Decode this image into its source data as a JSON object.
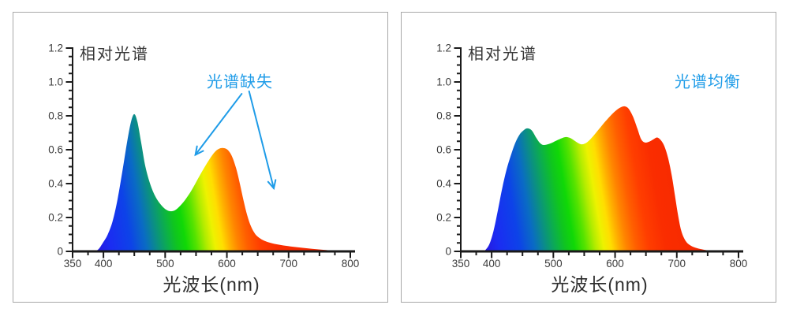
{
  "page": {
    "background": "#ffffff",
    "panel_border_color": "#a8a8a8",
    "axis_color": "#1a1a1a",
    "tick_label_color": "#3c3c3c",
    "title_color": "#383838",
    "annotation_color": "#1f9ce8"
  },
  "spectrum_gradient": [
    {
      "nm": 380,
      "color": "#2B11D6"
    },
    {
      "nm": 412,
      "color": "#1B2CF2"
    },
    {
      "nm": 445,
      "color": "#0D43E8"
    },
    {
      "nm": 468,
      "color": "#0A6BC4"
    },
    {
      "nm": 487,
      "color": "#0B9180"
    },
    {
      "nm": 502,
      "color": "#0CAD4E"
    },
    {
      "nm": 517,
      "color": "#0FC51F"
    },
    {
      "nm": 531,
      "color": "#10D807"
    },
    {
      "nm": 548,
      "color": "#55E300"
    },
    {
      "nm": 564,
      "color": "#B2EC00"
    },
    {
      "nm": 577,
      "color": "#EDF200"
    },
    {
      "nm": 589,
      "color": "#FFDE00"
    },
    {
      "nm": 601,
      "color": "#FFAE00"
    },
    {
      "nm": 613,
      "color": "#FF8400"
    },
    {
      "nm": 628,
      "color": "#FF5F00"
    },
    {
      "nm": 648,
      "color": "#FF3E00"
    },
    {
      "nm": 675,
      "color": "#FA2D00"
    },
    {
      "nm": 800,
      "color": "#F22300"
    }
  ],
  "chart_data": [
    {
      "type": "area",
      "title": "相对光谱",
      "xlabel": "光波长(nm)",
      "xlim": [
        350,
        800
      ],
      "ylim": [
        0,
        1.2
      ],
      "x_tick_labels": [
        [
          350,
          "350"
        ],
        [
          400,
          "400"
        ],
        [
          500,
          "500"
        ],
        [
          600,
          "600"
        ],
        [
          700,
          "700"
        ],
        [
          800,
          "800"
        ]
      ],
      "x_minor_step": 25,
      "y_tick_labels": [
        [
          0,
          "0"
        ],
        [
          0.2,
          "0.2"
        ],
        [
          0.4,
          "0.4"
        ],
        [
          0.6,
          "0.6"
        ],
        [
          0.8,
          "0.8"
        ],
        [
          1.0,
          "1.0"
        ],
        [
          1.2,
          "1.2"
        ]
      ],
      "y_minor_step": 0.05,
      "annotation": {
        "text": "光谱缺失",
        "anchor_nm": 621,
        "anchor_value": 1.01,
        "arrows": [
          {
            "from": [
              624,
              0.93
            ],
            "to": [
              549,
              0.57
            ]
          },
          {
            "from": [
              636,
              0.945
            ],
            "to": [
              676,
              0.372
            ]
          }
        ]
      },
      "points": [
        [
          382,
          0
        ],
        [
          391,
          0.01
        ],
        [
          399,
          0.05
        ],
        [
          407,
          0.1
        ],
        [
          415,
          0.18
        ],
        [
          423,
          0.31
        ],
        [
          431,
          0.48
        ],
        [
          439,
          0.66
        ],
        [
          445,
          0.77
        ],
        [
          450,
          0.81
        ],
        [
          455,
          0.765
        ],
        [
          461,
          0.645
        ],
        [
          468,
          0.5
        ],
        [
          476,
          0.395
        ],
        [
          484,
          0.325
        ],
        [
          492,
          0.28
        ],
        [
          500,
          0.25
        ],
        [
          508,
          0.237
        ],
        [
          516,
          0.243
        ],
        [
          524,
          0.268
        ],
        [
          533,
          0.307
        ],
        [
          543,
          0.362
        ],
        [
          553,
          0.428
        ],
        [
          563,
          0.492
        ],
        [
          572,
          0.545
        ],
        [
          580,
          0.585
        ],
        [
          587,
          0.605
        ],
        [
          594,
          0.61
        ],
        [
          601,
          0.6
        ],
        [
          608,
          0.563
        ],
        [
          615,
          0.49
        ],
        [
          621,
          0.4
        ],
        [
          627,
          0.3
        ],
        [
          633,
          0.212
        ],
        [
          639,
          0.148
        ],
        [
          646,
          0.102
        ],
        [
          654,
          0.076
        ],
        [
          663,
          0.059
        ],
        [
          674,
          0.047
        ],
        [
          688,
          0.037
        ],
        [
          703,
          0.029
        ],
        [
          720,
          0.022
        ],
        [
          738,
          0.015
        ],
        [
          756,
          0.009
        ],
        [
          774,
          0.004
        ],
        [
          790,
          0.001
        ],
        [
          798,
          0
        ]
      ]
    },
    {
      "type": "area",
      "title": "相对光谱",
      "xlabel": "光波长(nm)",
      "xlim": [
        350,
        800
      ],
      "ylim": [
        0,
        1.2
      ],
      "x_tick_labels": [
        [
          350,
          "350"
        ],
        [
          400,
          "400"
        ],
        [
          500,
          "500"
        ],
        [
          600,
          "600"
        ],
        [
          700,
          "700"
        ],
        [
          800,
          "800"
        ]
      ],
      "x_minor_step": 25,
      "y_tick_labels": [
        [
          0,
          "0"
        ],
        [
          0.2,
          "0.2"
        ],
        [
          0.4,
          "0.4"
        ],
        [
          0.6,
          "0.6"
        ],
        [
          0.8,
          "0.8"
        ],
        [
          1.0,
          "1.0"
        ],
        [
          1.2,
          "1.2"
        ]
      ],
      "y_minor_step": 0.05,
      "annotation": {
        "text": "光谱均衡",
        "anchor_nm": 750,
        "anchor_value": 1.01,
        "arrows": []
      },
      "points": [
        [
          388,
          0
        ],
        [
          396,
          0.04
        ],
        [
          403,
          0.12
        ],
        [
          410,
          0.24
        ],
        [
          417,
          0.37
        ],
        [
          424,
          0.48
        ],
        [
          431,
          0.565
        ],
        [
          438,
          0.638
        ],
        [
          445,
          0.688
        ],
        [
          452,
          0.715
        ],
        [
          458,
          0.726
        ],
        [
          465,
          0.714
        ],
        [
          472,
          0.672
        ],
        [
          478,
          0.641
        ],
        [
          484,
          0.628
        ],
        [
          492,
          0.633
        ],
        [
          500,
          0.645
        ],
        [
          508,
          0.659
        ],
        [
          515,
          0.67
        ],
        [
          521,
          0.675
        ],
        [
          528,
          0.668
        ],
        [
          535,
          0.652
        ],
        [
          541,
          0.638
        ],
        [
          547,
          0.632
        ],
        [
          555,
          0.645
        ],
        [
          564,
          0.678
        ],
        [
          574,
          0.722
        ],
        [
          584,
          0.766
        ],
        [
          594,
          0.806
        ],
        [
          603,
          0.836
        ],
        [
          610,
          0.852
        ],
        [
          616,
          0.856
        ],
        [
          622,
          0.842
        ],
        [
          629,
          0.796
        ],
        [
          636,
          0.726
        ],
        [
          642,
          0.664
        ],
        [
          648,
          0.643
        ],
        [
          655,
          0.647
        ],
        [
          662,
          0.661
        ],
        [
          668,
          0.672
        ],
        [
          674,
          0.657
        ],
        [
          680,
          0.62
        ],
        [
          686,
          0.55
        ],
        [
          692,
          0.445
        ],
        [
          697,
          0.33
        ],
        [
          702,
          0.215
        ],
        [
          707,
          0.125
        ],
        [
          713,
          0.07
        ],
        [
          720,
          0.04
        ],
        [
          730,
          0.022
        ],
        [
          742,
          0.011
        ],
        [
          755,
          0.004
        ],
        [
          766,
          0
        ]
      ]
    }
  ]
}
